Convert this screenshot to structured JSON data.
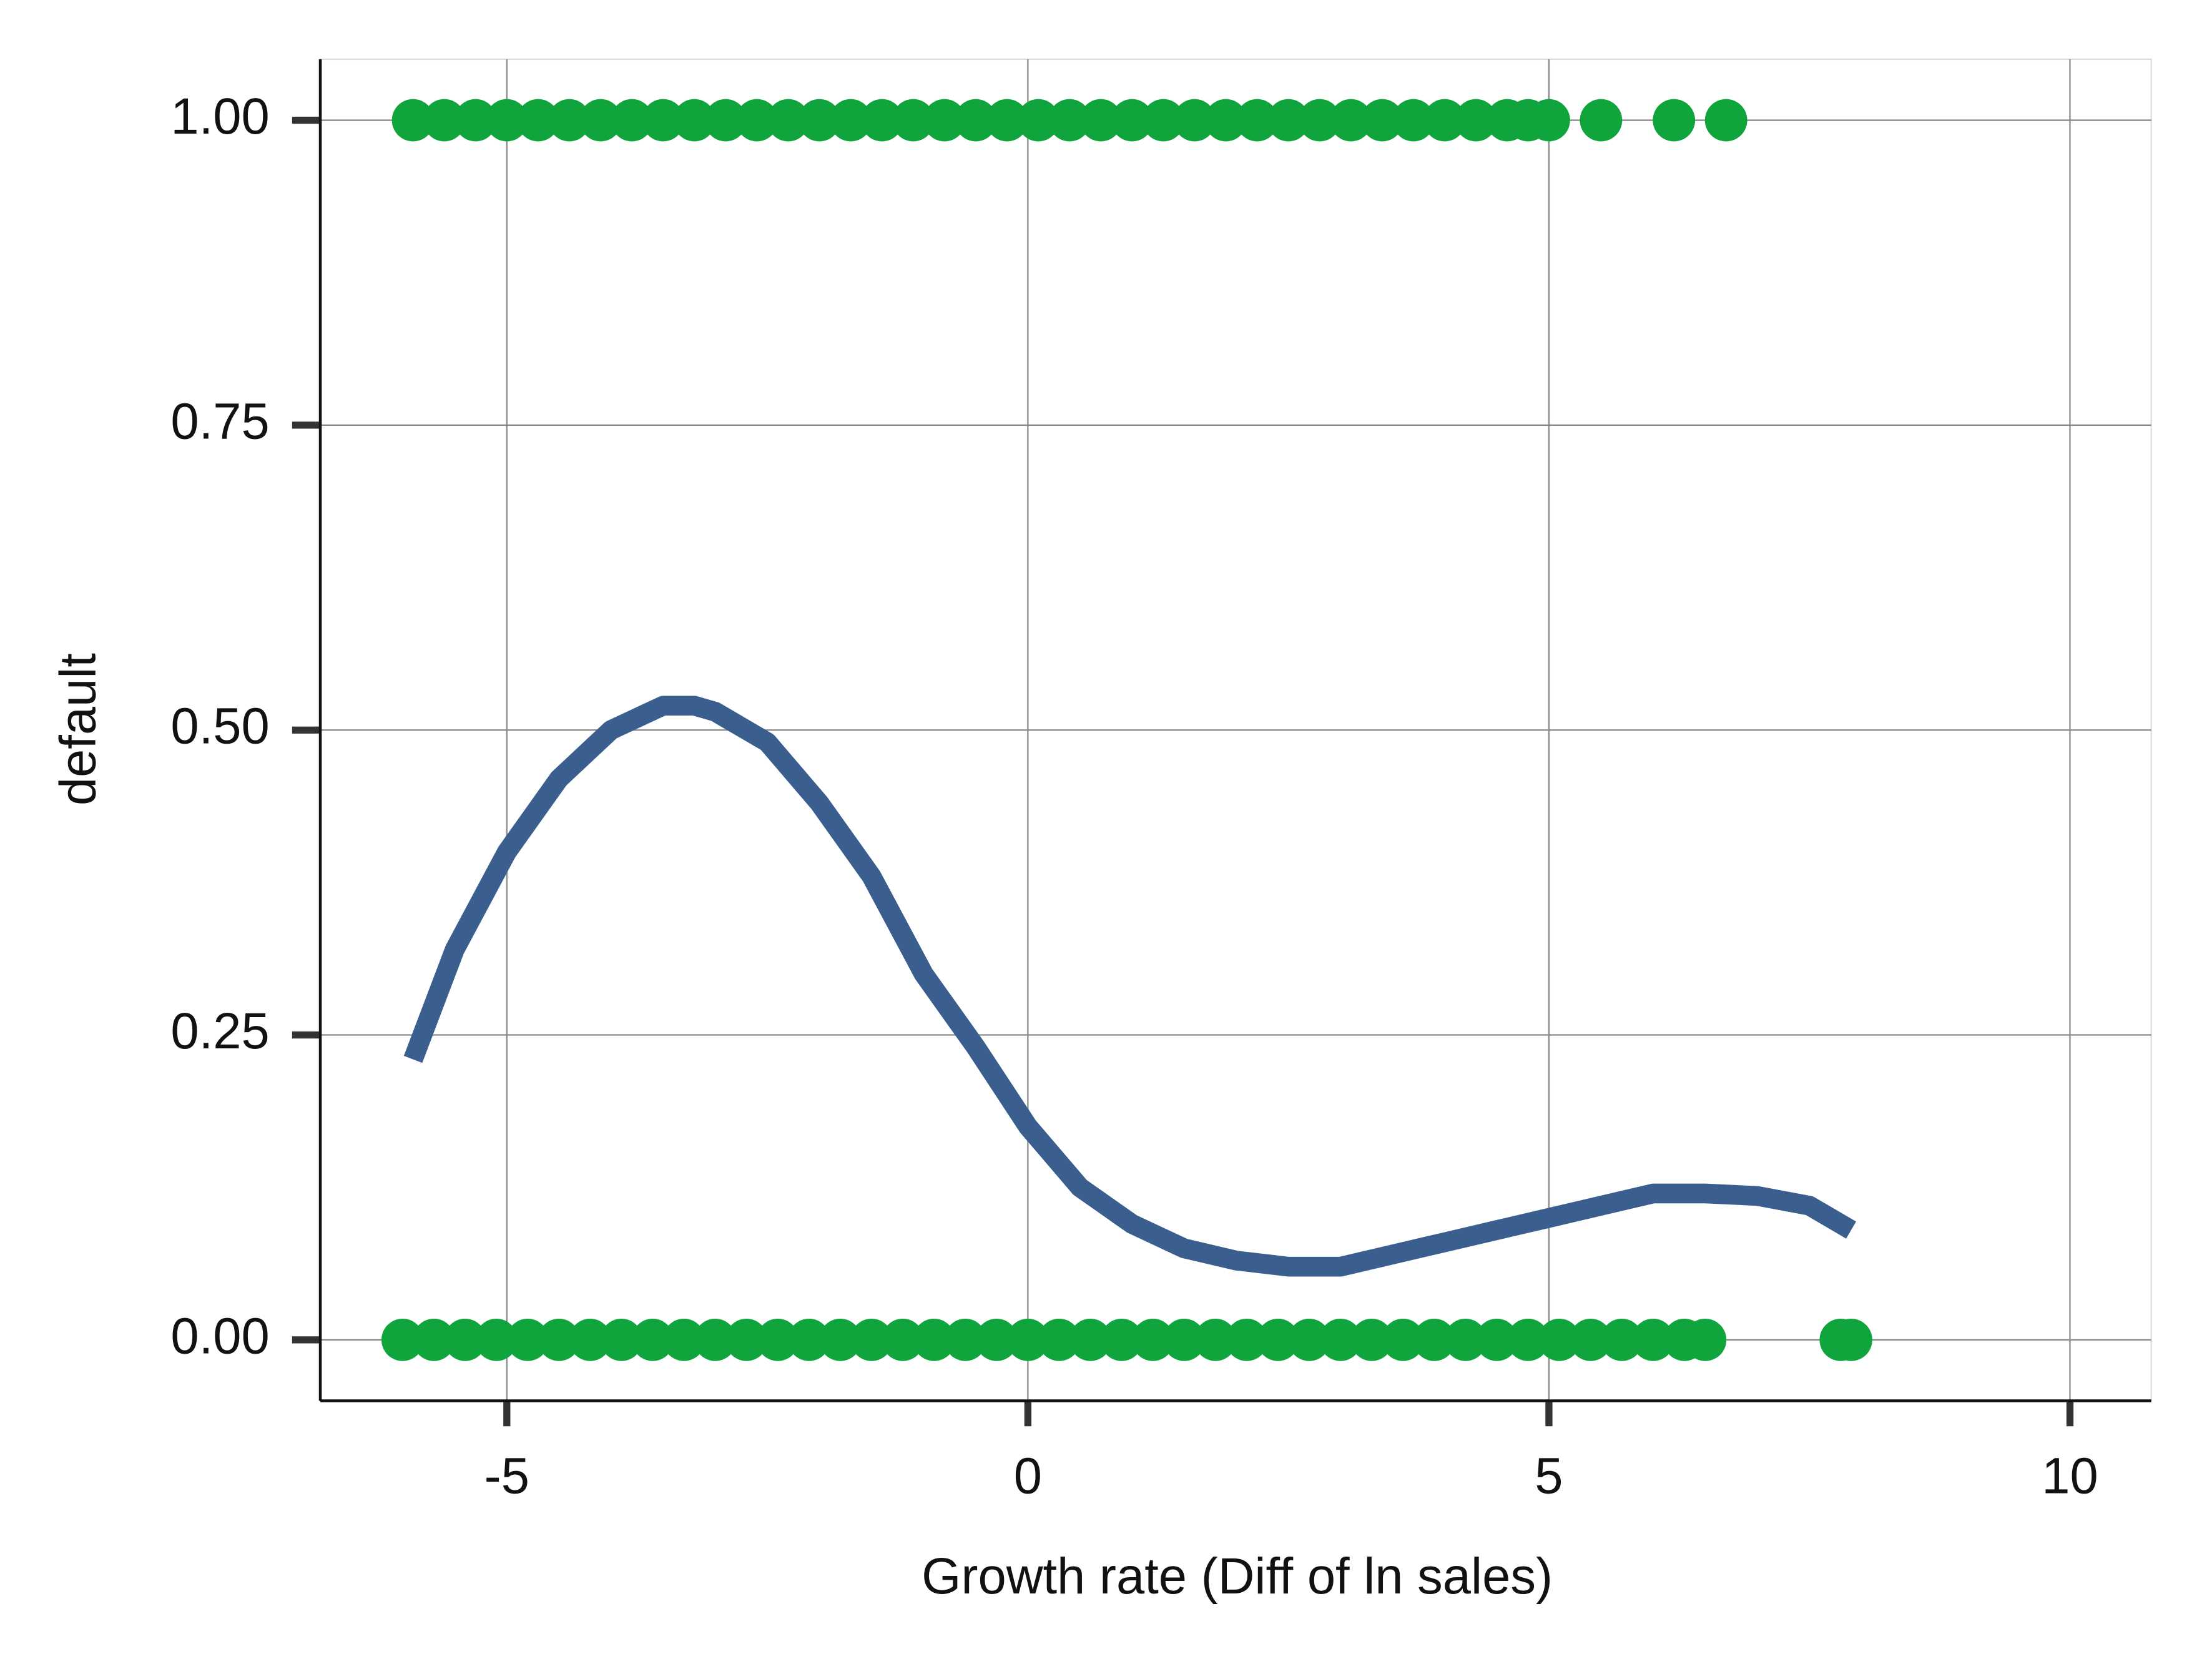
{
  "chart_data": {
    "type": "scatter",
    "x_label": "Growth rate (Diff of ln sales)",
    "y_label": "default",
    "xlim": [
      -6.79,
      10.78
    ],
    "ylim": [
      -0.05,
      1.05
    ],
    "xticks": [
      -5,
      0,
      5,
      10
    ],
    "yticks": [
      {
        "value": 0,
        "label": "0.00"
      },
      {
        "value": 0.25,
        "label": "0.25"
      },
      {
        "value": 0.5,
        "label": "0.50"
      },
      {
        "value": 0.75,
        "label": "0.75"
      },
      {
        "value": 1,
        "label": "1.00"
      }
    ],
    "grid": true,
    "points": {
      "color": "#10a43c",
      "x": [
        -5.9,
        -5.6,
        -5.3,
        -5.0,
        -4.7,
        -4.4,
        -4.1,
        -3.8,
        -3.5,
        -3.2,
        -2.9,
        -2.6,
        -2.3,
        -2.0,
        -1.7,
        -1.4,
        -1.1,
        -0.8,
        -0.5,
        -0.2,
        0.1,
        0.4,
        0.7,
        1.0,
        1.3,
        1.6,
        1.9,
        2.2,
        2.5,
        2.8,
        3.1,
        3.4,
        3.7,
        4.0,
        4.3,
        4.6,
        4.8,
        5.0,
        5.5,
        6.2,
        6.7,
        -6.0,
        -5.7,
        -5.4,
        -5.1,
        -4.8,
        -4.5,
        -4.2,
        -3.9,
        -3.6,
        -3.3,
        -3.0,
        -2.7,
        -2.4,
        -2.1,
        -1.8,
        -1.5,
        -1.2,
        -0.9,
        -0.6,
        -0.3,
        0.0,
        0.3,
        0.6,
        0.9,
        1.2,
        1.5,
        1.8,
        2.1,
        2.4,
        2.7,
        3.0,
        3.3,
        3.6,
        3.9,
        4.2,
        4.5,
        4.8,
        5.1,
        5.4,
        5.7,
        6.0,
        6.3,
        6.5,
        7.8,
        7.9
      ],
      "y": [
        1,
        1,
        1,
        1,
        1,
        1,
        1,
        1,
        1,
        1,
        1,
        1,
        1,
        1,
        1,
        1,
        1,
        1,
        1,
        1,
        1,
        1,
        1,
        1,
        1,
        1,
        1,
        1,
        1,
        1,
        1,
        1,
        1,
        1,
        1,
        1,
        1,
        1,
        1,
        1,
        1,
        0,
        0,
        0,
        0,
        0,
        0,
        0,
        0,
        0,
        0,
        0,
        0,
        0,
        0,
        0,
        0,
        0,
        0,
        0,
        0,
        0,
        0,
        0,
        0,
        0,
        0,
        0,
        0,
        0,
        0,
        0,
        0,
        0,
        0,
        0,
        0,
        0,
        0,
        0,
        0,
        0,
        0,
        0,
        0,
        0
      ]
    },
    "smooth": {
      "color": "#3a5f8f",
      "x": [
        -5.9,
        -5.5,
        -5.0,
        -4.5,
        -4.0,
        -3.5,
        -3.2,
        -3.0,
        -2.5,
        -2.0,
        -1.5,
        -1.0,
        -0.5,
        0.0,
        0.5,
        1.0,
        1.5,
        2.0,
        2.5,
        3.0,
        3.5,
        4.0,
        4.5,
        5.0,
        5.5,
        6.0,
        6.5,
        7.0,
        7.5,
        7.9
      ],
      "y": [
        0.23,
        0.32,
        0.4,
        0.46,
        0.5,
        0.52,
        0.52,
        0.515,
        0.49,
        0.44,
        0.38,
        0.3,
        0.24,
        0.175,
        0.125,
        0.095,
        0.075,
        0.065,
        0.06,
        0.06,
        0.07,
        0.08,
        0.09,
        0.1,
        0.11,
        0.12,
        0.12,
        0.118,
        0.11,
        0.09
      ]
    }
  }
}
